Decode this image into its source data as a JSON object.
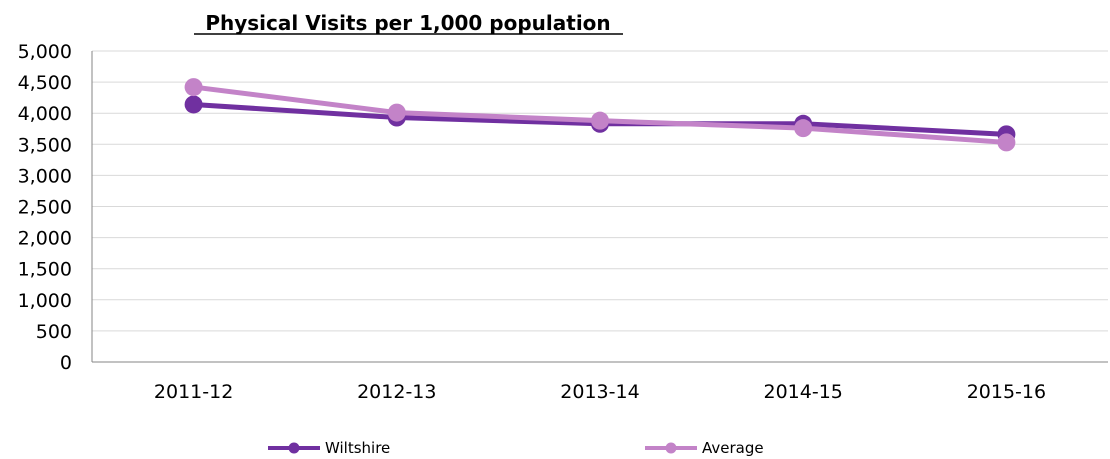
{
  "chart_data": {
    "type": "line",
    "title": "Physical Visits per 1,000 population",
    "xlabel": "",
    "ylabel": "",
    "categories": [
      "2011-12",
      "2012-13",
      "2013-14",
      "2014-15",
      "2015-16"
    ],
    "y_tick_labels": [
      "0",
      "500",
      "1,000",
      "1,500",
      "2,000",
      "2,500",
      "3,000",
      "3,500",
      "4,000",
      "4,500",
      "5,000"
    ],
    "y_tick_values": [
      0,
      500,
      1000,
      1500,
      2000,
      2500,
      3000,
      3500,
      4000,
      4500,
      5000
    ],
    "ylim": [
      0,
      5000
    ],
    "grid": true,
    "legend_position": "bottom",
    "series": [
      {
        "name": "Wiltshire",
        "color": "#7030A0",
        "values": [
          4140,
          3930,
          3830,
          3830,
          3660
        ]
      },
      {
        "name": "Average",
        "color": "#C383C8",
        "values": [
          4420,
          4010,
          3880,
          3760,
          3530
        ]
      }
    ]
  }
}
